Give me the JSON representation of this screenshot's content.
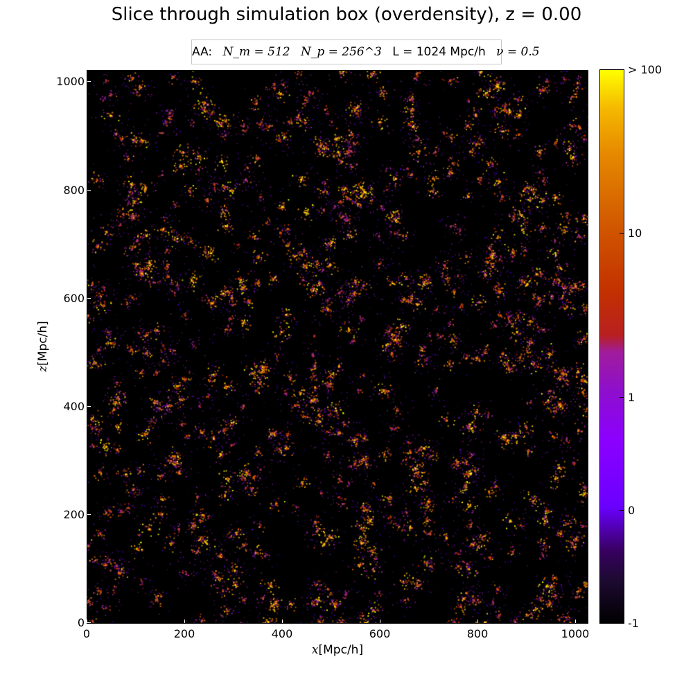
{
  "chart_data": {
    "type": "heatmap",
    "title": "Slice through simulation box (overdensity), z = 0.00",
    "info_box": {
      "prefix": "AA:",
      "nm": "N_m = 512",
      "np": "N_p = 256^3",
      "L": "L = 1024 Mpc/h",
      "nu": "ν = 0.5"
    },
    "xlabel": {
      "var": "x",
      "unit": "[Mpc/h]"
    },
    "ylabel": {
      "var": "z",
      "unit": "[Mpc/h]"
    },
    "xlim": [
      0,
      1024
    ],
    "ylim": [
      0,
      1024
    ],
    "x_ticks": [
      "0",
      "200",
      "400",
      "600",
      "800",
      "1000"
    ],
    "y_ticks": [
      "0",
      "200",
      "400",
      "600",
      "800",
      "1000"
    ],
    "colorbar": {
      "colormap": "gnuplot-like (black-purple-red-orange-yellow)",
      "ticks": [
        "-1",
        "0",
        "1",
        "10",
        "> 100"
      ]
    },
    "colors": {
      "background": "#000000",
      "low": "#6a00ff",
      "mid": "#c23100",
      "high": "#ffff00"
    }
  }
}
